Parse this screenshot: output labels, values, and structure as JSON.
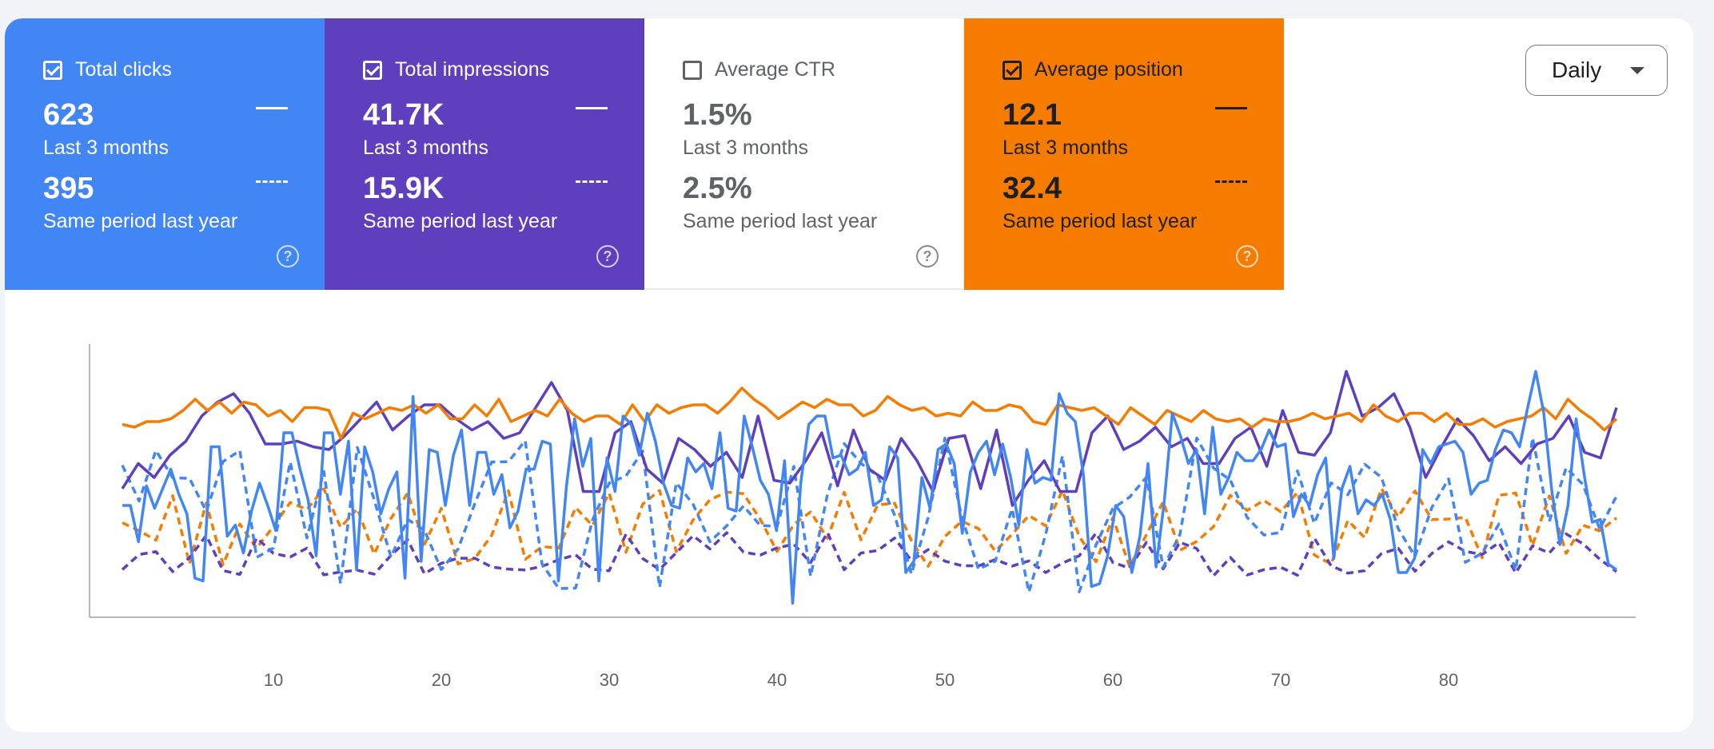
{
  "cards": [
    {
      "title": "Total clicks",
      "checked": true,
      "value": "623",
      "period": "Last 3 months",
      "compare_value": "395",
      "compare_period": "Same period last year",
      "color": "#4285f4"
    },
    {
      "title": "Total impressions",
      "checked": true,
      "value": "41.7K",
      "period": "Last 3 months",
      "compare_value": "15.9K",
      "compare_period": "Same period last year",
      "color": "#5e3fbe"
    },
    {
      "title": "Average CTR",
      "checked": false,
      "value": "1.5%",
      "period": "Last 3 months",
      "compare_value": "2.5%",
      "compare_period": "Same period last year",
      "color": "#ffffff"
    },
    {
      "title": "Average position",
      "checked": true,
      "value": "12.1",
      "period": "Last 3 months",
      "compare_value": "32.4",
      "compare_period": "Same period last year",
      "color": "#f57c00"
    }
  ],
  "icons": {
    "help": "help-circle-icon",
    "dropdown": "caret-down-icon"
  },
  "granularity": {
    "selected": "Daily"
  },
  "chart_data": {
    "type": "line",
    "x_ticks": [
      10,
      20,
      30,
      40,
      50,
      60,
      70,
      80
    ],
    "xlim": [
      0,
      90
    ],
    "ylim": [
      0,
      100
    ],
    "series": [
      {
        "metric": "Total impressions",
        "period": "current",
        "dashed": false,
        "color": "#5e3fbe",
        "values": [
          46,
          55,
          50,
          58,
          63,
          72,
          77,
          80,
          73,
          62,
          62,
          63,
          61,
          60,
          65,
          71,
          77,
          67,
          72,
          76,
          76,
          71,
          67,
          70,
          64,
          66,
          75,
          84,
          74,
          45,
          45,
          66,
          70,
          53,
          48,
          64,
          60,
          54,
          59,
          50,
          72,
          49,
          48,
          56,
          66,
          47,
          67,
          53,
          49,
          64,
          56,
          45,
          64,
          65,
          46,
          67,
          40,
          49,
          56,
          45,
          45,
          66,
          72,
          60,
          63,
          68,
          61,
          64,
          55,
          55,
          64,
          68,
          54,
          74,
          59,
          58,
          66,
          88,
          72,
          75,
          80,
          68,
          50,
          61,
          71,
          65,
          56,
          61,
          55,
          62,
          64,
          72,
          59,
          57,
          75
        ]
      },
      {
        "metric": "Average position",
        "period": "current",
        "dashed": false,
        "color": "#f57c00",
        "values": [
          69,
          68,
          70,
          70,
          71,
          74,
          78,
          74,
          77,
          73,
          77,
          76,
          72,
          74,
          70,
          75,
          75,
          74,
          64,
          73,
          71,
          73,
          75,
          74,
          76,
          73,
          76,
          71,
          71,
          76,
          72,
          78,
          70,
          72,
          74,
          72,
          78,
          73,
          70,
          72,
          72,
          69,
          76,
          70,
          76,
          73,
          75,
          76,
          76,
          73,
          77,
          82,
          78,
          75,
          71,
          74,
          77,
          75,
          78,
          76,
          76,
          72,
          74,
          79,
          76,
          74,
          75,
          72,
          73,
          72,
          77,
          74,
          74,
          76,
          75,
          70,
          69,
          76,
          75,
          74,
          75,
          72,
          69,
          75,
          72,
          69,
          74,
          72,
          70,
          74,
          71,
          70,
          71,
          68,
          71,
          70,
          70,
          71,
          73,
          71,
          72,
          73,
          70,
          76,
          72,
          70,
          73,
          73,
          70,
          73,
          69,
          69,
          71,
          68,
          70,
          71,
          72,
          75,
          71,
          78,
          74,
          71,
          67,
          71
        ]
      },
      {
        "metric": "Total clicks",
        "period": "current",
        "dashed": false,
        "color": "#4285f4",
        "values": [
          40,
          40,
          27,
          47,
          39,
          46,
          53,
          44,
          37,
          14,
          13,
          61,
          61,
          29,
          33,
          23,
          38,
          48,
          40,
          31,
          66,
          66,
          53,
          42,
          22,
          66,
          66,
          44,
          63,
          17,
          61,
          52,
          37,
          46,
          52,
          14,
          79,
          20,
          60,
          59,
          40,
          58,
          67,
          40,
          59,
          59,
          44,
          51,
          32,
          38,
          53,
          53,
          63,
          62,
          13,
          47,
          71,
          54,
          64,
          13,
          57,
          45,
          72,
          69,
          58,
          73,
          63,
          48,
          40,
          39,
          57,
          52,
          55,
          46,
          66,
          39,
          38,
          72,
          61,
          49,
          44,
          31,
          56,
          5,
          48,
          69,
          72,
          72,
          57,
          58,
          51,
          53,
          59,
          40,
          42,
          61,
          57,
          16,
          20,
          50,
          39,
          60,
          62,
          55,
          30,
          52,
          59,
          63,
          51,
          62,
          50,
          33,
          60,
          48,
          50,
          49,
          80,
          73,
          70,
          51,
          11,
          12,
          22,
          40,
          36,
          16,
          29,
          55,
          18,
          41,
          73,
          65,
          55,
          60,
          37,
          68,
          44,
          50,
          59,
          56,
          56,
          60,
          67,
          61,
          62,
          36,
          44,
          40,
          51,
          57,
          21,
          46,
          54,
          37,
          42,
          40,
          44,
          35,
          16,
          16,
          21,
          60,
          55,
          61,
          62,
          63,
          59,
          44,
          48,
          49,
          60,
          67,
          66,
          61,
          75,
          88,
          73,
          45,
          26,
          40,
          71,
          51,
          34,
          35,
          19,
          17
        ]
      },
      {
        "metric": "Total clicks",
        "period": "previous",
        "dashed": false,
        "color": "#4285f4",
        "values": []
      }
    ]
  }
}
